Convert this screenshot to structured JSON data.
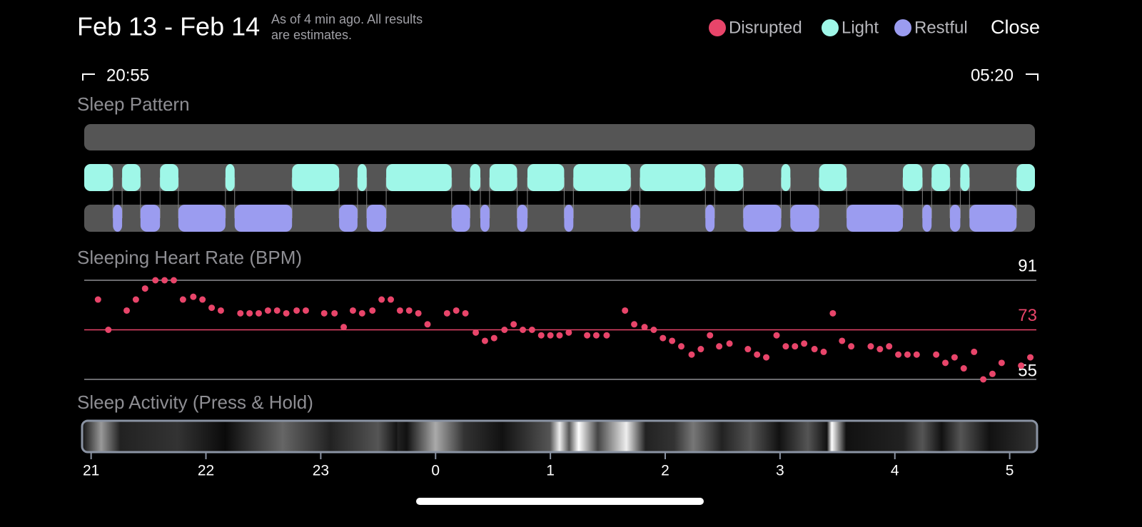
{
  "header": {
    "title": "Feb 13 - Feb 14",
    "subtitle_lines": [
      "As of 4 min ago. All results",
      "are estimates."
    ],
    "close": "Close"
  },
  "legend": [
    {
      "name": "Disrupted",
      "color": "#e8456a"
    },
    {
      "name": "Light",
      "color": "#9ff7e8"
    },
    {
      "name": "Restful",
      "color": "#9b9cf0"
    }
  ],
  "time_range": {
    "start": "20:55",
    "end": "05:20"
  },
  "xlim": [
    20.94,
    29.22
  ],
  "xticks": [
    21,
    22,
    23,
    {
      "value": 24,
      "label": "0"
    },
    {
      "value": 25,
      "label": "1"
    },
    {
      "value": 26,
      "label": "2"
    },
    {
      "value": 27,
      "label": "3"
    },
    {
      "value": 28,
      "label": "4"
    },
    {
      "value": 29,
      "label": "5"
    }
  ],
  "sleep_pattern": {
    "title": "Sleep Pattern",
    "light": [
      [
        20.94,
        21.19
      ],
      [
        21.27,
        21.43
      ],
      [
        21.6,
        21.76
      ],
      [
        22.17,
        22.25
      ],
      [
        22.75,
        23.16
      ],
      [
        23.32,
        23.4
      ],
      [
        23.57,
        24.14
      ],
      [
        24.3,
        24.39
      ],
      [
        24.47,
        24.71
      ],
      [
        24.8,
        25.12
      ],
      [
        25.2,
        25.7
      ],
      [
        25.78,
        26.35
      ],
      [
        26.43,
        26.68
      ],
      [
        27.01,
        27.09
      ],
      [
        27.34,
        27.58
      ],
      [
        28.07,
        28.24
      ],
      [
        28.32,
        28.48
      ],
      [
        28.57,
        28.65
      ],
      [
        29.06,
        29.22
      ]
    ],
    "restful": [
      [
        21.19,
        21.27
      ],
      [
        21.43,
        21.6
      ],
      [
        21.76,
        22.17
      ],
      [
        22.25,
        22.75
      ],
      [
        23.16,
        23.32
      ],
      [
        23.4,
        23.57
      ],
      [
        24.14,
        24.3
      ],
      [
        24.39,
        24.47
      ],
      [
        24.71,
        24.8
      ],
      [
        25.12,
        25.2
      ],
      [
        25.7,
        25.78
      ],
      [
        26.35,
        26.43
      ],
      [
        26.68,
        27.01
      ],
      [
        27.09,
        27.34
      ],
      [
        27.58,
        28.07
      ],
      [
        28.24,
        28.32
      ],
      [
        28.48,
        28.57
      ],
      [
        28.65,
        29.06
      ]
    ]
  },
  "heart_rate": {
    "title": "Sleeping Heart Rate (BPM)",
    "color": "#e8456a",
    "ylim": [
      55,
      91
    ],
    "yticks": [
      55,
      91
    ],
    "average": 73,
    "x": [
      21.06,
      21.15,
      21.31,
      21.39,
      21.47,
      21.56,
      21.64,
      21.72,
      21.8,
      21.89,
      21.97,
      22.05,
      22.13,
      22.3,
      22.38,
      22.46,
      22.54,
      22.62,
      22.7,
      22.79,
      22.87,
      23.03,
      23.12,
      23.2,
      23.28,
      23.36,
      23.45,
      23.53,
      23.61,
      23.69,
      23.77,
      23.85,
      23.93,
      24.1,
      24.18,
      24.26,
      24.35,
      24.43,
      24.51,
      24.6,
      24.68,
      24.76,
      24.84,
      24.92,
      25.0,
      25.08,
      25.16,
      25.32,
      25.4,
      25.49,
      25.65,
      25.73,
      25.82,
      25.9,
      25.98,
      26.06,
      26.14,
      26.23,
      26.31,
      26.39,
      26.47,
      26.56,
      26.72,
      26.8,
      26.88,
      26.97,
      27.05,
      27.13,
      27.21,
      27.3,
      27.38,
      27.46,
      27.54,
      27.62,
      27.79,
      27.87,
      27.95,
      28.03,
      28.11,
      28.19,
      28.36,
      28.44,
      28.52,
      28.6,
      28.69,
      28.77,
      28.85,
      28.93,
      29.1,
      29.18
    ],
    "values": [
      84,
      73,
      80,
      84,
      88,
      91,
      91,
      91,
      84,
      85,
      84,
      81,
      80,
      79,
      79,
      79,
      80,
      80,
      79,
      80,
      80,
      79,
      79,
      74,
      80,
      79,
      80,
      84,
      84,
      80,
      80,
      79,
      75,
      79,
      80,
      79,
      72,
      69,
      70,
      73,
      75,
      73,
      73,
      71,
      71,
      71,
      72,
      71,
      71,
      71,
      80,
      75,
      74,
      73,
      70,
      69,
      67,
      64,
      66,
      71,
      67,
      68,
      66,
      64,
      63,
      71,
      67,
      67,
      68,
      66,
      65,
      79,
      69,
      67,
      67,
      66,
      67,
      64,
      64,
      64,
      64,
      61,
      63,
      59,
      65,
      55,
      57,
      61,
      60,
      63
    ]
  },
  "activity": {
    "title": "Sleep Activity (Press & Hold)"
  }
}
